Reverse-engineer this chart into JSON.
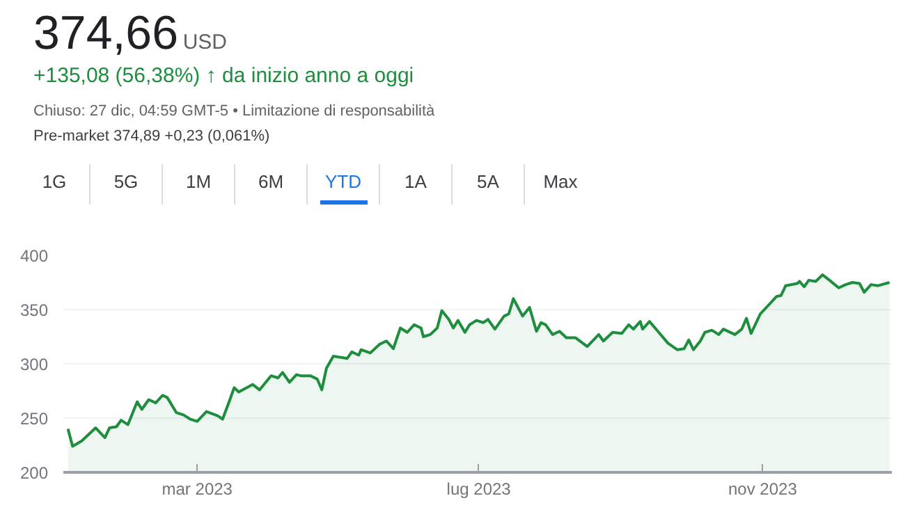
{
  "chart_data": {
    "type": "area",
    "title": "374,66",
    "subtitle": "+135,08 (56,38%) ↑ da inizio anno a oggi",
    "annotations": [
      "USD",
      "Chiuso: 27 dic, 04:59 GMT-5 • Limitazione di responsabilità",
      "Pre-market 374,89 +0,23 (0,061%)",
      "1G",
      "5G",
      "1M",
      "6M",
      "YTD",
      "1A",
      "5A",
      "Max"
    ],
    "x": [
      "2023-01-04",
      "2023-01-06",
      "2023-01-10",
      "2023-01-16",
      "2023-01-20",
      "2023-01-22",
      "2023-01-25",
      "2023-01-27",
      "2023-01-30",
      "2023-02-03",
      "2023-02-05",
      "2023-02-08",
      "2023-02-11",
      "2023-02-14",
      "2023-02-16",
      "2023-02-20",
      "2023-02-23",
      "2023-02-26",
      "2023-03-01",
      "2023-03-05",
      "2023-03-10",
      "2023-03-12",
      "2023-03-15",
      "2023-03-17",
      "2023-03-19",
      "2023-03-25",
      "2023-03-28",
      "2023-04-02",
      "2023-04-05",
      "2023-04-07",
      "2023-04-10",
      "2023-04-13",
      "2023-04-15",
      "2023-04-19",
      "2023-04-22",
      "2023-04-24",
      "2023-04-26",
      "2023-04-29",
      "2023-05-05",
      "2023-05-07",
      "2023-05-10",
      "2023-05-11",
      "2023-05-15",
      "2023-05-19",
      "2023-05-22",
      "2023-05-25",
      "2023-05-28",
      "2023-05-31",
      "2023-06-03",
      "2023-06-06",
      "2023-06-07",
      "2023-06-10",
      "2023-06-13",
      "2023-06-15",
      "2023-06-18",
      "2023-06-20",
      "2023-06-22",
      "2023-06-25",
      "2023-06-27",
      "2023-06-30",
      "2023-07-03",
      "2023-07-05",
      "2023-07-08",
      "2023-07-12",
      "2023-07-14",
      "2023-07-16",
      "2023-07-20",
      "2023-07-23",
      "2023-07-26",
      "2023-07-28",
      "2023-07-30",
      "2023-08-02",
      "2023-08-05",
      "2023-08-08",
      "2023-08-12",
      "2023-08-17",
      "2023-08-22",
      "2023-08-24",
      "2023-08-28",
      "2023-09-01",
      "2023-09-04",
      "2023-09-06",
      "2023-09-09",
      "2023-09-10",
      "2023-09-13",
      "2023-09-17",
      "2023-09-21",
      "2023-09-25",
      "2023-09-28",
      "2023-09-30",
      "2023-10-02",
      "2023-10-05",
      "2023-10-07",
      "2023-10-10",
      "2023-10-13",
      "2023-10-15",
      "2023-10-20",
      "2023-10-23",
      "2023-10-25",
      "2023-10-27",
      "2023-10-31",
      "2023-11-07",
      "2023-11-09",
      "2023-11-11",
      "2023-11-16",
      "2023-11-17",
      "2023-11-19",
      "2023-11-21",
      "2023-11-24",
      "2023-11-27",
      "2023-11-30",
      "2023-12-04",
      "2023-12-07",
      "2023-12-10",
      "2023-12-13",
      "2023-12-15",
      "2023-12-18",
      "2023-12-21",
      "2023-12-26"
    ],
    "values": [
      240,
      224,
      229,
      241,
      232,
      241,
      242,
      248,
      244,
      265,
      258,
      267,
      264,
      271,
      269,
      255,
      253,
      249,
      247,
      256,
      252,
      249,
      266,
      278,
      274,
      281,
      276,
      289,
      287,
      292,
      283,
      290,
      289,
      289,
      286,
      276,
      296,
      307,
      305,
      311,
      308,
      313,
      310,
      318,
      321,
      314,
      333,
      329,
      336,
      333,
      325,
      327,
      333,
      349,
      341,
      333,
      340,
      329,
      336,
      340,
      338,
      341,
      332,
      344,
      346,
      360,
      344,
      352,
      330,
      338,
      336,
      327,
      330,
      324,
      324,
      316,
      327,
      321,
      329,
      328,
      336,
      332,
      339,
      332,
      339,
      329,
      319,
      313,
      314,
      322,
      313,
      321,
      329,
      331,
      327,
      332,
      327,
      332,
      342,
      328,
      346,
      362,
      363,
      372,
      374,
      376,
      371,
      377,
      376,
      382,
      377,
      370,
      373,
      375,
      374,
      366,
      373,
      372,
      375
    ],
    "color": "#1e8e3e",
    "xlim": [
      "2023-01-02",
      "2023-12-27"
    ],
    "xticks": [
      {
        "value": "2023-03-01",
        "label": "mar 2023"
      },
      {
        "value": "2023-07-01",
        "label": "lug 2023"
      },
      {
        "value": "2023-11-01",
        "label": "nov 2023"
      }
    ],
    "ylim": [
      200,
      400
    ],
    "yticks": [
      200,
      250,
      300,
      350,
      400
    ],
    "grid": "y"
  }
}
